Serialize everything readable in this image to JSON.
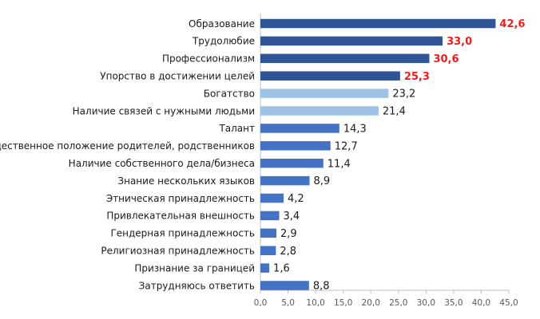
{
  "chart_data": {
    "type": "bar",
    "orientation": "horizontal",
    "categories": [
      "Образование",
      "Трудолюбие",
      "Профессионализм",
      "Упорство в достижении целей",
      "Богатство",
      "Наличие связей с нужными людьми",
      "Талант",
      "Общественное положение родителей, родственников",
      "Наличие собственного дела/бизнеса",
      "Знание нескольких языков",
      "Этническая принадлежность",
      "Привлекательная внешность",
      "Гендерная принадлежность",
      "Религиозная принадлежность",
      "Признание за границей",
      "Затрудняюсь ответить"
    ],
    "values": [
      42.6,
      33.0,
      30.6,
      25.3,
      23.2,
      21.4,
      14.3,
      12.7,
      11.4,
      8.9,
      4.2,
      3.4,
      2.9,
      2.8,
      1.6,
      8.8
    ],
    "value_labels": [
      "42,6",
      "33,0",
      "30,6",
      "25,3",
      "23,2",
      "21,4",
      "14,3",
      "12,7",
      "11,4",
      "8,9",
      "4,2",
      "3,4",
      "2,9",
      "2,8",
      "1,6",
      "8,8"
    ],
    "bar_groups": [
      "dark",
      "dark",
      "dark",
      "dark",
      "light",
      "light",
      "mid",
      "mid",
      "mid",
      "mid",
      "mid",
      "mid",
      "mid",
      "mid",
      "mid",
      "mid"
    ],
    "highlighted_labels": [
      true,
      true,
      true,
      true,
      false,
      false,
      false,
      false,
      false,
      false,
      false,
      false,
      false,
      false,
      false,
      false
    ],
    "x_ticks": [
      0,
      5,
      10,
      15,
      20,
      25,
      30,
      35,
      40,
      45
    ],
    "x_tick_labels": [
      "0,0",
      "5,0",
      "10,0",
      "15,0",
      "20,0",
      "25,0",
      "30,0",
      "35,0",
      "40,0",
      "45,0"
    ],
    "xlim": [
      0,
      45
    ],
    "title": "",
    "xlabel": "",
    "ylabel": "",
    "grid": false,
    "legend": "none"
  },
  "colors": {
    "dark": "#2f5597",
    "light": "#9dc3e6",
    "mid": "#4472c4",
    "highlight_text": "#ee1c1c",
    "text": "#1a1a1a",
    "axis": "#bfbfbf",
    "tick_text": "#595959"
  }
}
